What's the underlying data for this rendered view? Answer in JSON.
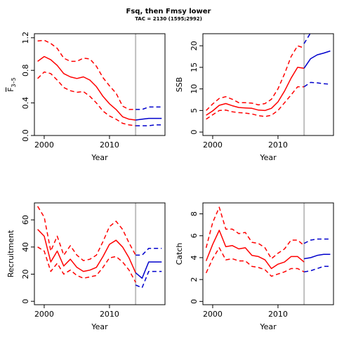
{
  "figure": {
    "title": "Fsq, then Fmsy lower",
    "subtitle": "TAC = 2130 (1595;2992)"
  },
  "colors": {
    "historical": "#ff0000",
    "projection": "#0000cc",
    "divider": "#bebebe"
  },
  "chart_data": [
    {
      "type": "line",
      "panel": "F",
      "xlabel": "Year",
      "ylabel": "F",
      "ylabel_sub": "3–5",
      "xlim": [
        1998.5,
        2018.5
      ],
      "ylim": [
        0,
        1.25
      ],
      "xticks": [
        2000,
        2010
      ],
      "yticks": [
        0.0,
        0.4,
        0.8,
        1.2
      ],
      "ytick_labels": [
        "0.0",
        "0.4",
        "0.8",
        "1.2"
      ],
      "divider_x": 2014,
      "series": [
        {
          "role": "historical-median",
          "style": "solid",
          "color": "historical",
          "x": [
            1999,
            2000,
            2001,
            2002,
            2003,
            2004,
            2005,
            2006,
            2007,
            2008,
            2009,
            2010,
            2011,
            2012,
            2013,
            2014
          ],
          "y": [
            0.91,
            0.97,
            0.93,
            0.86,
            0.76,
            0.72,
            0.7,
            0.72,
            0.68,
            0.6,
            0.48,
            0.39,
            0.32,
            0.23,
            0.2,
            0.19
          ]
        },
        {
          "role": "historical-upper",
          "style": "dashed",
          "color": "historical",
          "x": [
            1999,
            2000,
            2001,
            2002,
            2003,
            2004,
            2005,
            2006,
            2007,
            2008,
            2009,
            2010,
            2011,
            2012,
            2013,
            2014
          ],
          "y": [
            1.16,
            1.17,
            1.13,
            1.07,
            0.95,
            0.91,
            0.91,
            0.95,
            0.94,
            0.85,
            0.71,
            0.61,
            0.52,
            0.36,
            0.32,
            0.32
          ]
        },
        {
          "role": "historical-lower",
          "style": "dashed",
          "color": "historical",
          "x": [
            1999,
            2000,
            2001,
            2002,
            2003,
            2004,
            2005,
            2006,
            2007,
            2008,
            2009,
            2010,
            2011,
            2012,
            2013,
            2014
          ],
          "y": [
            0.7,
            0.78,
            0.76,
            0.68,
            0.59,
            0.55,
            0.53,
            0.54,
            0.48,
            0.4,
            0.3,
            0.24,
            0.2,
            0.15,
            0.13,
            0.12
          ]
        },
        {
          "role": "projection-median",
          "style": "solid",
          "color": "projection",
          "x": [
            2014,
            2015,
            2016,
            2017,
            2018
          ],
          "y": [
            0.19,
            0.2,
            0.21,
            0.21,
            0.21
          ]
        },
        {
          "role": "projection-upper",
          "style": "dashed",
          "color": "projection",
          "x": [
            2014,
            2015,
            2016,
            2017,
            2018
          ],
          "y": [
            0.32,
            0.32,
            0.35,
            0.35,
            0.35
          ]
        },
        {
          "role": "projection-lower",
          "style": "dashed",
          "color": "projection",
          "x": [
            2014,
            2015,
            2016,
            2017,
            2018
          ],
          "y": [
            0.12,
            0.12,
            0.12,
            0.13,
            0.13
          ]
        }
      ]
    },
    {
      "type": "line",
      "panel": "SSB",
      "xlabel": "Year",
      "ylabel": "SSB",
      "ylabel_sub": "",
      "xlim": [
        1998.5,
        2018.5
      ],
      "ylim": [
        -0.8,
        22.8
      ],
      "xticks": [
        2000,
        2010
      ],
      "yticks": [
        0,
        5,
        10,
        15,
        20
      ],
      "ytick_labels": [
        "0",
        "5",
        "10",
        "15",
        "20"
      ],
      "divider_x": 2014,
      "series": [
        {
          "role": "historical-median",
          "style": "solid",
          "color": "historical",
          "x": [
            1999,
            2000,
            2001,
            2002,
            2003,
            2004,
            2005,
            2006,
            2007,
            2008,
            2009,
            2010,
            2011,
            2012,
            2013,
            2014
          ],
          "y": [
            3.9,
            4.9,
            6.2,
            6.6,
            6.1,
            5.7,
            5.6,
            5.5,
            5.1,
            5.0,
            5.5,
            7.0,
            9.5,
            12.5,
            15.0,
            14.8
          ]
        },
        {
          "role": "historical-upper",
          "style": "dashed",
          "color": "historical",
          "x": [
            1999,
            2000,
            2001,
            2002,
            2003,
            2004,
            2005,
            2006,
            2007,
            2008,
            2009,
            2010,
            2011,
            2012,
            2013,
            2014
          ],
          "y": [
            5.0,
            6.5,
            7.8,
            8.2,
            7.6,
            6.8,
            6.8,
            6.7,
            6.3,
            6.6,
            7.6,
            10.0,
            13.5,
            17.5,
            20.0,
            19.5
          ]
        },
        {
          "role": "historical-lower",
          "style": "dashed",
          "color": "historical",
          "x": [
            1999,
            2000,
            2001,
            2002,
            2003,
            2004,
            2005,
            2006,
            2007,
            2008,
            2009,
            2010,
            2011,
            2012,
            2013,
            2014
          ],
          "y": [
            3.0,
            4.0,
            5.0,
            5.1,
            4.7,
            4.5,
            4.4,
            4.2,
            3.8,
            3.6,
            3.9,
            5.0,
            6.8,
            8.6,
            10.5,
            10.5
          ]
        },
        {
          "role": "projection-median",
          "style": "solid",
          "color": "projection",
          "x": [
            2014,
            2015,
            2016,
            2017,
            2018
          ],
          "y": [
            14.8,
            17.0,
            17.9,
            18.3,
            18.8
          ]
        },
        {
          "role": "projection-upper",
          "style": "dashed",
          "color": "projection",
          "x": [
            2014,
            2015
          ],
          "y": [
            20.5,
            23.0
          ]
        },
        {
          "role": "projection-lower",
          "style": "dashed",
          "color": "projection",
          "x": [
            2014,
            2015,
            2016,
            2017,
            2018
          ],
          "y": [
            10.5,
            11.5,
            11.4,
            11.2,
            11.1
          ]
        }
      ]
    },
    {
      "type": "line",
      "panel": "Recruitment",
      "xlabel": "Year",
      "ylabel": "Recruitment",
      "ylabel_sub": "",
      "xlim": [
        1998.5,
        2018.5
      ],
      "ylim": [
        -2.5,
        72.5
      ],
      "xticks": [
        2000,
        2010
      ],
      "yticks": [
        0,
        20,
        40,
        60
      ],
      "ytick_labels": [
        "0",
        "20",
        "40",
        "60"
      ],
      "divider_x": 2014,
      "series": [
        {
          "role": "historical-median",
          "style": "solid",
          "color": "historical",
          "x": [
            1999,
            2000,
            2001,
            2002,
            2003,
            2004,
            2005,
            2006,
            2007,
            2008,
            2009,
            2010,
            2011,
            2012,
            2013,
            2014
          ],
          "y": [
            53,
            48,
            29,
            37,
            26,
            31,
            25,
            22,
            23,
            25,
            33,
            42,
            45,
            40,
            32,
            21
          ]
        },
        {
          "role": "historical-upper",
          "style": "dashed",
          "color": "historical",
          "x": [
            1999,
            2000,
            2001,
            2002,
            2003,
            2004,
            2005,
            2006,
            2007,
            2008,
            2009,
            2010,
            2011,
            2012,
            2013,
            2014
          ],
          "y": [
            70,
            62,
            37,
            48,
            34,
            41,
            34,
            30,
            31,
            34,
            44,
            55,
            59,
            53,
            43,
            34
          ]
        },
        {
          "role": "historical-lower",
          "style": "dashed",
          "color": "historical",
          "x": [
            1999,
            2000,
            2001,
            2002,
            2003,
            2004,
            2005,
            2006,
            2007,
            2008,
            2009,
            2010,
            2011,
            2012,
            2013,
            2014
          ],
          "y": [
            40,
            37,
            22,
            28,
            20,
            23,
            19,
            17,
            18,
            19,
            25,
            32,
            33,
            29,
            23,
            14
          ]
        },
        {
          "role": "projection-median",
          "style": "solid",
          "color": "projection",
          "x": [
            2014,
            2015,
            2016,
            2017,
            2018
          ],
          "y": [
            21,
            17,
            29,
            29,
            29
          ]
        },
        {
          "role": "projection-upper",
          "style": "dashed",
          "color": "projection",
          "x": [
            2014,
            2015,
            2016,
            2017,
            2018
          ],
          "y": [
            34,
            34,
            39,
            39,
            39
          ]
        },
        {
          "role": "projection-lower",
          "style": "dashed",
          "color": "projection",
          "x": [
            2014,
            2015,
            2016,
            2017,
            2018
          ],
          "y": [
            12,
            10,
            22,
            22,
            22
          ]
        }
      ]
    },
    {
      "type": "line",
      "panel": "Catch",
      "xlabel": "Year",
      "ylabel": "Catch",
      "ylabel_sub": "",
      "xlim": [
        1998.5,
        2018.5
      ],
      "ylim": [
        -0.3,
        9.0
      ],
      "xticks": [
        2000,
        2010
      ],
      "yticks": [
        0,
        2,
        4,
        6,
        8
      ],
      "ytick_labels": [
        "0",
        "2",
        "4",
        "6",
        "8"
      ],
      "divider_x": 2014,
      "series": [
        {
          "role": "historical-median",
          "style": "solid",
          "color": "historical",
          "x": [
            1999,
            2000,
            2001,
            2002,
            2003,
            2004,
            2005,
            2006,
            2007,
            2008,
            2009,
            2010,
            2011,
            2012,
            2013,
            2014
          ],
          "y": [
            3.7,
            5.2,
            6.5,
            5.0,
            5.1,
            4.8,
            4.9,
            4.2,
            4.1,
            3.8,
            3.0,
            3.4,
            3.6,
            4.1,
            4.1,
            3.6
          ]
        },
        {
          "role": "historical-upper",
          "style": "dashed",
          "color": "historical",
          "x": [
            1999,
            2000,
            2001,
            2002,
            2003,
            2004,
            2005,
            2006,
            2007,
            2008,
            2009,
            2010,
            2011,
            2012,
            2013,
            2014
          ],
          "y": [
            4.9,
            7.2,
            8.6,
            6.6,
            6.6,
            6.2,
            6.3,
            5.4,
            5.3,
            4.9,
            3.9,
            4.4,
            4.8,
            5.6,
            5.6,
            5.1
          ]
        },
        {
          "role": "historical-lower",
          "style": "dashed",
          "color": "historical",
          "x": [
            1999,
            2000,
            2001,
            2002,
            2003,
            2004,
            2005,
            2006,
            2007,
            2008,
            2009,
            2010,
            2011,
            2012,
            2013,
            2014
          ],
          "y": [
            2.6,
            3.9,
            4.9,
            3.8,
            3.9,
            3.7,
            3.7,
            3.2,
            3.1,
            2.9,
            2.3,
            2.5,
            2.7,
            3.0,
            3.0,
            2.7
          ]
        },
        {
          "role": "projection-median",
          "style": "solid",
          "color": "projection",
          "x": [
            2014,
            2015,
            2016,
            2017,
            2018
          ],
          "y": [
            3.9,
            4.0,
            4.2,
            4.3,
            4.3
          ]
        },
        {
          "role": "projection-upper",
          "style": "dashed",
          "color": "projection",
          "x": [
            2014,
            2015,
            2016,
            2017,
            2018
          ],
          "y": [
            5.3,
            5.6,
            5.7,
            5.7,
            5.7
          ]
        },
        {
          "role": "projection-lower",
          "style": "dashed",
          "color": "projection",
          "x": [
            2014,
            2015,
            2016,
            2017,
            2018
          ],
          "y": [
            2.7,
            2.8,
            3.0,
            3.2,
            3.2
          ]
        }
      ]
    }
  ]
}
